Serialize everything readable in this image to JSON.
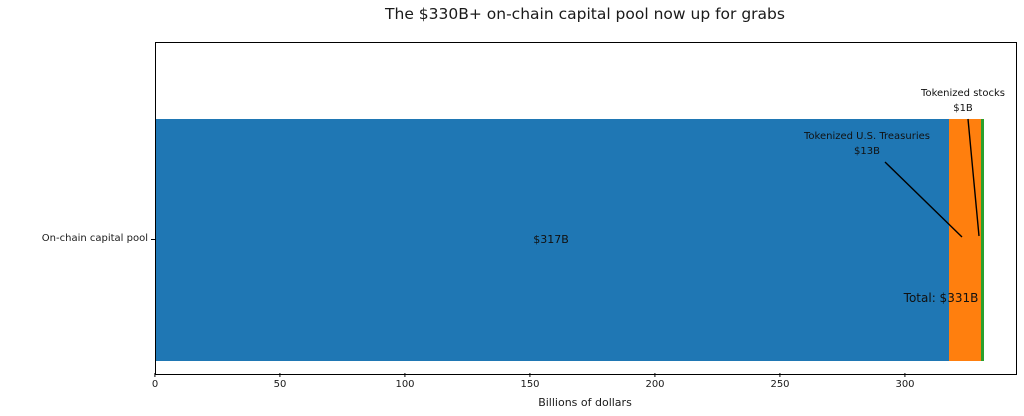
{
  "chart_data": {
    "type": "bar",
    "orientation": "horizontal",
    "stacked": true,
    "title": "The $330B+ on-chain capital pool now up for grabs",
    "xlabel": "Billions of dollars",
    "categories": [
      "On-chain capital pool"
    ],
    "xlim": [
      0,
      344
    ],
    "xtick_values": [
      0,
      50,
      100,
      150,
      200,
      250,
      300
    ],
    "xticks": [
      "0",
      "50",
      "100",
      "150",
      "200",
      "250",
      "300"
    ],
    "grid": false,
    "legend": "none",
    "series": [
      {
        "name": "",
        "value": 317,
        "color": "#1f77b4",
        "label": "$317B"
      },
      {
        "name": "Tokenized U.S. Treasuries",
        "value": 13,
        "color": "#ff7f0e",
        "label": "$13B"
      },
      {
        "name": "Tokenized stocks",
        "value": 1,
        "color": "#2ca02c",
        "label": "$1B"
      }
    ],
    "total_value": 331,
    "annotations": {
      "stocks": {
        "title": "Tokenized stocks",
        "value": "$1B"
      },
      "treasuries": {
        "title": "Tokenized U.S. Treasuries",
        "value": "$13B"
      },
      "total": "Total: $331B",
      "segment_label": "$317B"
    }
  }
}
